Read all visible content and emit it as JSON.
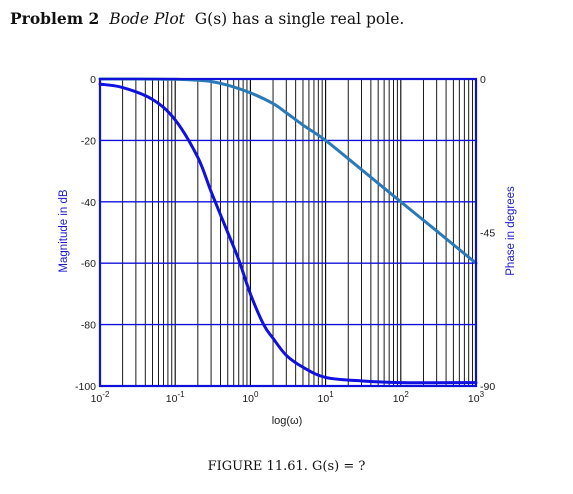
{
  "problem": {
    "label": "Problem 2",
    "subject": "Bode Plot",
    "statement": "G(s) has a single real pole."
  },
  "caption": "FIGURE 11.61. G(s) = ?",
  "chart_data": {
    "type": "line",
    "title": "",
    "xlabel": "log(ω)",
    "xscale": "log",
    "xlim": [
      0.01,
      1000
    ],
    "x_tick_labels": [
      {
        "value": 0.01,
        "base": "10",
        "exp": "-2"
      },
      {
        "value": 0.1,
        "base": "10",
        "exp": "-1"
      },
      {
        "value": 1,
        "base": "10",
        "exp": "0"
      },
      {
        "value": 10,
        "base": "10",
        "exp": "1"
      },
      {
        "value": 100,
        "base": "10",
        "exp": "2"
      },
      {
        "value": 1000,
        "base": "10",
        "exp": "3"
      }
    ],
    "ylabel_left": "Magnitude in dB",
    "ylim_left": [
      -100,
      0
    ],
    "y_ticks_left": [
      0,
      -20,
      -40,
      -60,
      -80,
      -100
    ],
    "ylabel_right": "Phase in degrees",
    "ylim_right": [
      -90,
      0
    ],
    "y_ticks_right": [
      0,
      -45,
      -90
    ],
    "grid": true,
    "grid_x": "log minor",
    "colors": {
      "axis": "#1010d8",
      "grid": "#000000",
      "magnitude": "#2a7ab8",
      "phase": "#1010e0",
      "tick_text": "#1a1a1a",
      "axis_label": "#1a1ad0"
    },
    "series": [
      {
        "axis": "left",
        "x": [
          0.01,
          0.03,
          0.1,
          0.2,
          0.3,
          0.5,
          1,
          2,
          3,
          5,
          10,
          30,
          100,
          300,
          1000
        ],
        "y": [
          0,
          0,
          -0.1,
          -0.4,
          -0.8,
          -2,
          -4.5,
          -8,
          -11,
          -15,
          -20,
          -29.5,
          -40,
          -49.5,
          -60
        ]
      },
      {
        "axis": "right",
        "x": [
          0.01,
          0.02,
          0.05,
          0.1,
          0.2,
          0.3,
          0.5,
          0.7,
          1,
          1.5,
          2,
          3,
          5,
          10,
          30,
          100,
          1000
        ],
        "y": [
          -1.5,
          -2.5,
          -6,
          -12,
          -23,
          -33,
          -45,
          -53,
          -63,
          -72,
          -76,
          -81,
          -84.5,
          -87.5,
          -88.5,
          -89,
          -89
        ]
      }
    ]
  }
}
